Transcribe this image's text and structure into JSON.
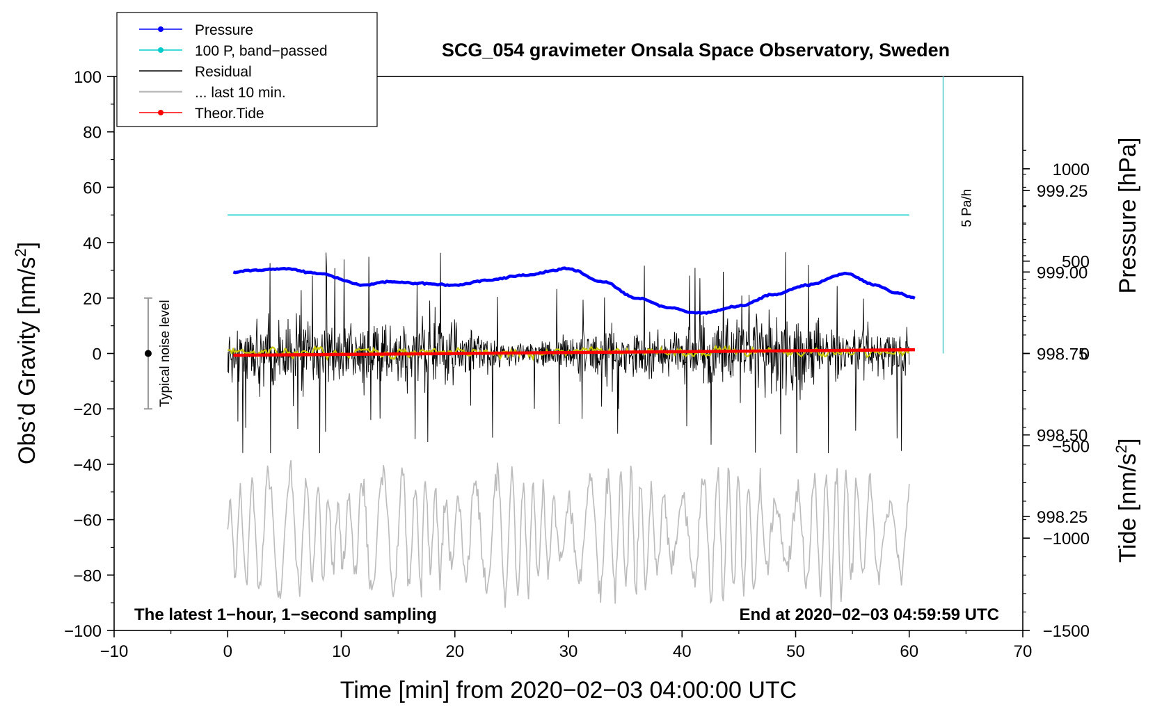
{
  "chart_data": {
    "type": "line",
    "title": "SCG_054 gravimeter Onsala Space Observatory, Sweden",
    "xlabel": "Time [min] from 2020−02−03 04:00:00 UTC",
    "ylabel_main": "Obs’d Gravity [nm/s",
    "ylabel_sup": "2",
    "ylabel_close": "]",
    "xlim": [
      -10,
      70
    ],
    "ylim": [
      -100,
      100
    ],
    "x_ticks": [
      "−10",
      "0",
      "10",
      "20",
      "30",
      "40",
      "50",
      "60",
      "70"
    ],
    "x_tick_values": [
      -10,
      0,
      10,
      20,
      30,
      40,
      50,
      60,
      70
    ],
    "y_ticks": [
      "100",
      "80",
      "60",
      "40",
      "20",
      "0",
      "−20",
      "−40",
      "−60",
      "−80",
      "−100"
    ],
    "y_tick_values": [
      100,
      80,
      60,
      40,
      20,
      0,
      -20,
      -40,
      -60,
      -80,
      -100
    ],
    "right_axis_pressure": {
      "label": "Pressure [hPa]",
      "tick_labels": [
        "999.25",
        "999.00",
        "998.75",
        "998.50",
        "998.25"
      ],
      "tick_values": [
        999.25,
        999.0,
        998.75,
        998.5,
        998.25
      ],
      "range": [
        997.9,
        999.6
      ]
    },
    "right_axis_tide": {
      "label_main": "Tide [nm/s",
      "label_sup": "2",
      "label_close": "]",
      "tick_labels": [
        "1000",
        "500",
        "0",
        "−500",
        "−1000",
        "−1500"
      ],
      "tick_values": [
        1000,
        500,
        0,
        -500,
        -1000,
        -1500
      ],
      "range": [
        -1500,
        1500
      ]
    },
    "legend": [
      {
        "label": "Pressure",
        "color": "#0000ff",
        "marker": true
      },
      {
        "label": "100 P, band−passed",
        "color": "#00cccc",
        "marker": true
      },
      {
        "label": "Residual",
        "color": "#000000",
        "marker": false
      },
      {
        "label": "... last 10 min.",
        "color": "#bbbbbb",
        "marker": false
      },
      {
        "label": "Theor.Tide",
        "color": "#ff0000",
        "marker": true
      }
    ],
    "series": [
      {
        "name": "Pressure",
        "axis": "pressure",
        "color": "#0000ff",
        "x": [
          0.5,
          2,
          5,
          8,
          12,
          14,
          17,
          20,
          23,
          26,
          30,
          33,
          36,
          39,
          41,
          42,
          45,
          48,
          51,
          54.5,
          57,
          59,
          60.5
        ],
        "y": [
          999.0,
          999.005,
          999.01,
          998.995,
          998.96,
          998.97,
          998.965,
          998.96,
          998.975,
          998.99,
          999.01,
          998.97,
          998.92,
          998.89,
          998.875,
          998.875,
          998.895,
          998.93,
          998.96,
          998.995,
          998.96,
          998.935,
          998.92
        ]
      },
      {
        "name": "100 P, band−passed",
        "axis": "gravity",
        "color": "#00cccc",
        "x": [
          0,
          60
        ],
        "y": [
          50,
          50
        ]
      },
      {
        "name": "Residual",
        "axis": "gravity",
        "color": "#000000",
        "x_range": [
          0,
          60
        ],
        "amplitude": 12,
        "spike_min": -36,
        "spike_max": 42
      },
      {
        "name": "Residual (smoothed)",
        "axis": "gravity",
        "color": "#c8c800",
        "x_range": [
          0,
          60
        ],
        "center": 0.5
      },
      {
        "name": "... last 10 min.",
        "axis": "gravity",
        "color": "#bbbbbb",
        "x_range": [
          0,
          60
        ],
        "center": -65,
        "amplitude": 15
      },
      {
        "name": "Theor.Tide",
        "axis": "tide",
        "color": "#ff0000",
        "x": [
          0.5,
          60.5
        ],
        "y": [
          -10,
          20
        ]
      }
    ],
    "noise_bar": {
      "x": -7,
      "center": 0,
      "low": -20,
      "high": 20,
      "label": "Typical noise level"
    },
    "scale_bar": {
      "x": 63,
      "top": 100,
      "bottom": 0,
      "label": "5 Pa/h"
    },
    "annotations": {
      "left": "The latest 1−hour, 1−second sampling",
      "right": "End at 2020−02−03 04:59:59 UTC"
    }
  }
}
